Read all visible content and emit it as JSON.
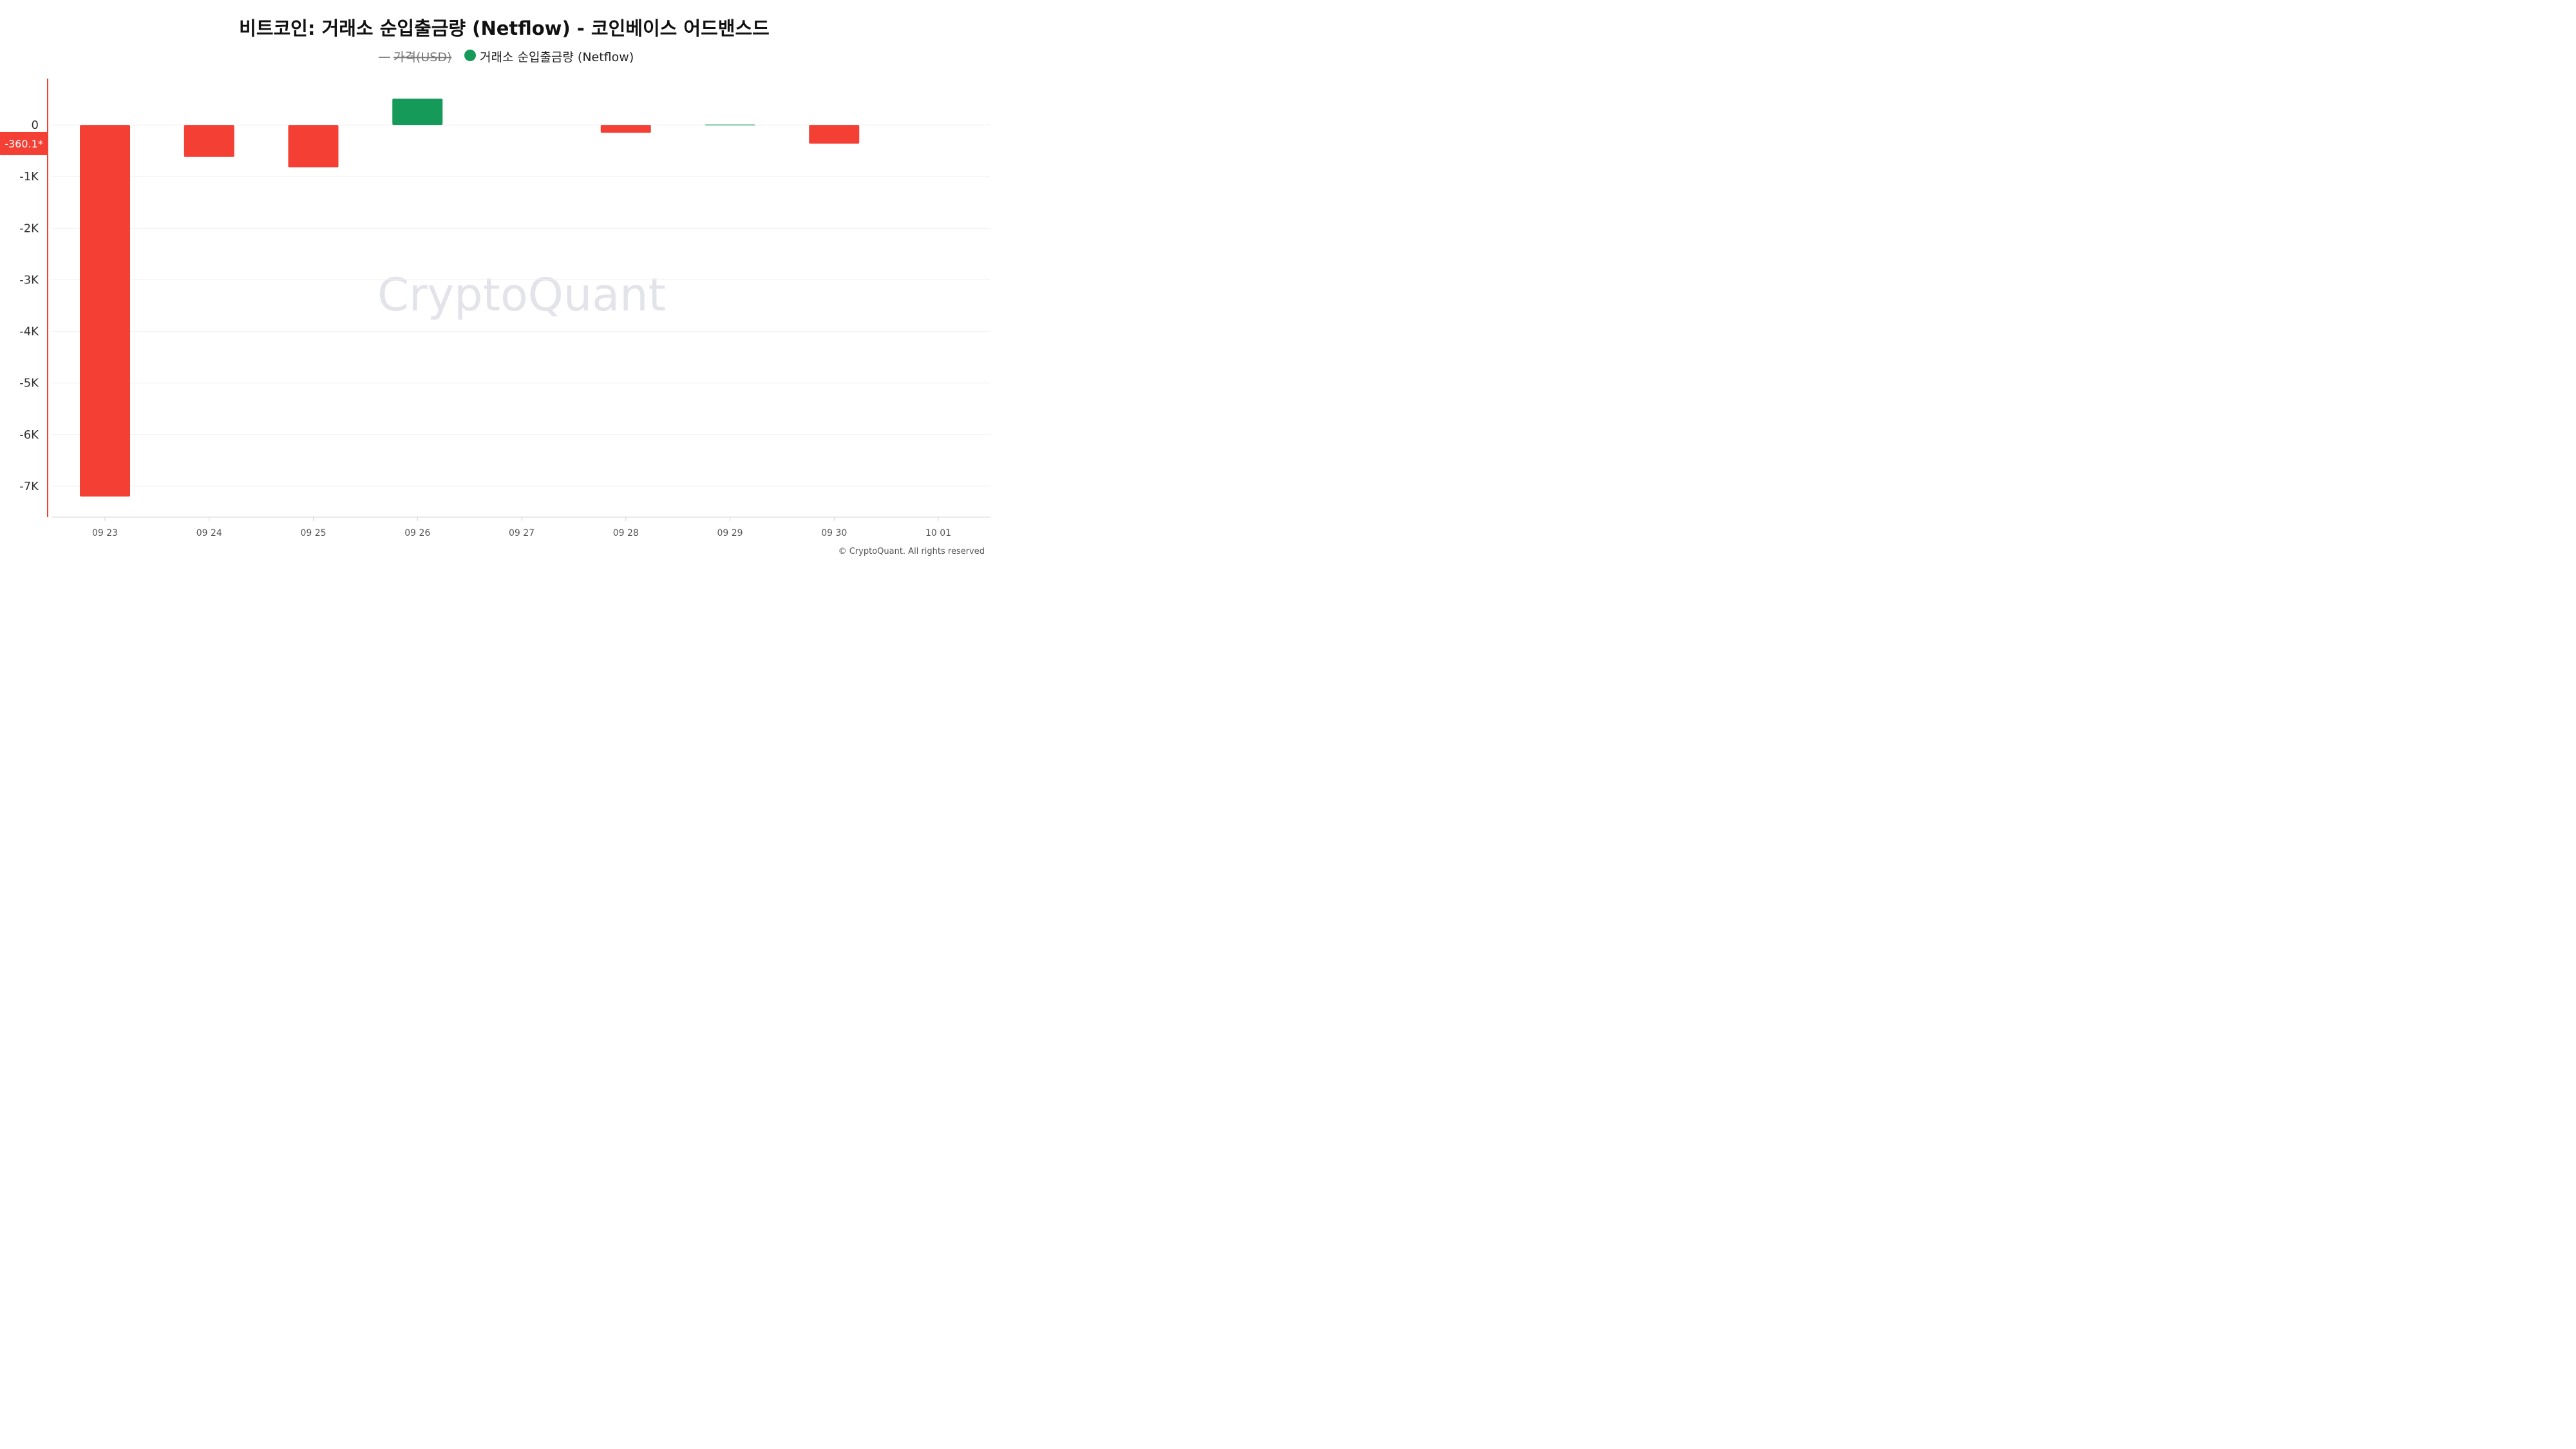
{
  "chart_data": {
    "type": "bar",
    "title": "비트코인: 거래소 순입출금량 (Netflow) - 코인베이스 어드밴스드",
    "legend": [
      {
        "label": "가격(USD)",
        "marker": "line",
        "hidden": true,
        "color": "#888888"
      },
      {
        "label": "거래소 순입출금량 (Netflow)",
        "marker": "circle",
        "hidden": false,
        "color": "#169a5a"
      }
    ],
    "categories": [
      "09 23",
      "09 24",
      "09 25",
      "09 26",
      "09 27",
      "09 28",
      "09 29",
      "09 30",
      "10 01"
    ],
    "series": [
      {
        "name": "거래소 순입출금량 (Netflow)",
        "values": [
          -7200,
          -620,
          -820,
          510,
          null,
          -150,
          8,
          -360.1,
          null
        ]
      }
    ],
    "y_ticks": [
      {
        "value": 0,
        "label": "0"
      },
      {
        "value": -1000,
        "label": "-1K"
      },
      {
        "value": -2000,
        "label": "-2K"
      },
      {
        "value": -3000,
        "label": "-3K"
      },
      {
        "value": -4000,
        "label": "-4K"
      },
      {
        "value": -5000,
        "label": "-5K"
      },
      {
        "value": -6000,
        "label": "-6K"
      },
      {
        "value": -7000,
        "label": "-7K"
      }
    ],
    "ylim": [
      -7600,
      900
    ],
    "current_value_label": {
      "value": -360.1,
      "text": "-360.1*"
    },
    "positive_color": "#169a5a",
    "negative_color": "#f43f35",
    "axis_color": "#f43f35",
    "watermark": "CryptoQuant",
    "copyright": "© CryptoQuant. All rights reserved",
    "grid": true,
    "legend_position": "top-center"
  }
}
